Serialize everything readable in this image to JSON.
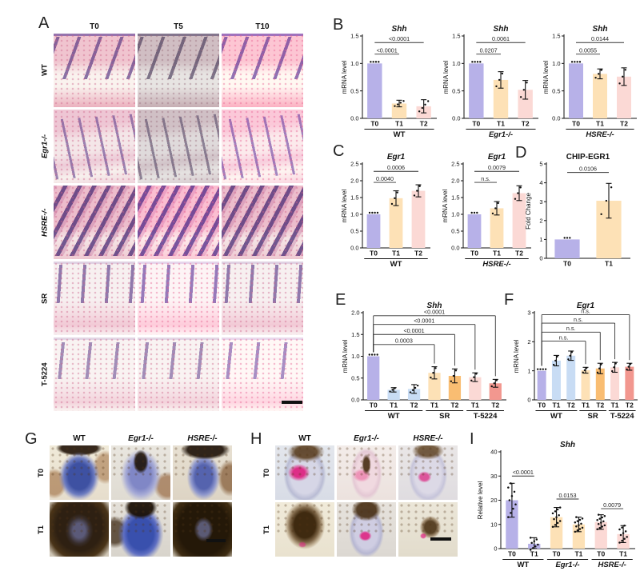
{
  "letters": {
    "A": "A",
    "B": "B",
    "C": "C",
    "D": "D",
    "E": "E",
    "F": "F",
    "G": "G",
    "H": "H",
    "I": "I"
  },
  "panels": {
    "A": {
      "col_headers": [
        "T0",
        "T5",
        "T10"
      ],
      "rows": [
        {
          "label": "WT",
          "italic": false,
          "tiles": [
            "he-wt",
            "he-wt tint-grey",
            "he-wt tint-warm"
          ]
        },
        {
          "label": "Egr1-/-",
          "italic": true,
          "tiles": [
            "he-eg",
            "he-eg tint-grey",
            "he-eg tint-warm"
          ]
        },
        {
          "label": "HSRE-/-",
          "italic": true,
          "tiles": [
            "he-hs",
            "he-hs tint-warm",
            "he-hs"
          ]
        },
        {
          "label": "SR",
          "italic": false,
          "tiles": [
            "he-sr",
            "he-sr tint-warm",
            "he-sr"
          ]
        },
        {
          "label": "T-5224",
          "italic": false,
          "tiles": [
            "he-t5",
            "he-t5",
            "he-t5 tint-warm"
          ]
        }
      ]
    },
    "G": {
      "col_headers": [
        {
          "label": "WT",
          "italic": false
        },
        {
          "label": "Egr1-/-",
          "italic": true
        },
        {
          "label": "HSRE-/-",
          "italic": true
        }
      ],
      "rows": [
        {
          "label": "T0",
          "italic": false,
          "tiles": [
            "g1",
            "g2",
            "g3"
          ]
        },
        {
          "label": "T1",
          "italic": false,
          "tiles": [
            "g4",
            "g5",
            "g6"
          ]
        }
      ]
    },
    "H": {
      "col_headers": [
        {
          "label": "WT",
          "italic": false
        },
        {
          "label": "Egr1-/-",
          "italic": true
        },
        {
          "label": "HSRE-/-",
          "italic": true
        }
      ],
      "rows": [
        {
          "label": "T0",
          "italic": false,
          "tiles": [
            "h1",
            "h2",
            "h3"
          ]
        },
        {
          "label": "T1",
          "italic": false,
          "tiles": [
            "h4",
            "h5",
            "h6"
          ]
        }
      ]
    }
  },
  "palette": {
    "purple": "#b7b1e8",
    "blue": "#c8dcf4",
    "orange_light": "#fde1b6",
    "orange": "#f9bd72",
    "pink_light": "#fbd9d5",
    "salmon": "#f2978f"
  },
  "chart_data": [
    {
      "id": "b1",
      "type": "bar",
      "title": "Shh",
      "title_italic": true,
      "ylabel": "mRNA level",
      "ylim": [
        0,
        1.5
      ],
      "yticks": [
        "0.0",
        "0.5",
        "1.0",
        "1.5"
      ],
      "categories": [
        "T0",
        "T1",
        "T2"
      ],
      "values": [
        1.0,
        0.27,
        0.22
      ],
      "errors": [
        0.02,
        0.06,
        0.12
      ],
      "colors": [
        "#b7b1e8",
        "#fde1b6",
        "#fbd9d5"
      ],
      "dots": [
        {
          "n": 4,
          "layout": "row"
        },
        {
          "n": 4,
          "layout": "spread"
        },
        {
          "n": 4,
          "layout": "spread"
        }
      ],
      "groups": [
        {
          "label": "WT",
          "italic": false,
          "span": [
            0,
            2
          ]
        }
      ],
      "sig": [
        {
          "from": 0,
          "to": 1,
          "label": "<0.0001",
          "y": 1.17
        },
        {
          "from": 0,
          "to": 2,
          "label": "<0.0001",
          "y": 1.38
        }
      ]
    },
    {
      "id": "b2",
      "type": "bar",
      "title": "Shh",
      "title_italic": true,
      "ylabel": "mRNA level",
      "ylim": [
        0,
        1.5
      ],
      "yticks": [
        "0.0",
        "0.5",
        "1.0",
        "1.5"
      ],
      "categories": [
        "T0",
        "T1",
        "T2"
      ],
      "values": [
        1.0,
        0.7,
        0.52
      ],
      "errors": [
        0.02,
        0.15,
        0.17
      ],
      "colors": [
        "#b7b1e8",
        "#fde1b6",
        "#fbd9d5"
      ],
      "dots": [
        {
          "n": 4,
          "layout": "row"
        },
        {
          "n": 3,
          "layout": "spread"
        },
        {
          "n": 3,
          "layout": "spread"
        }
      ],
      "groups": [
        {
          "label": "Egr1-/-",
          "italic": true,
          "span": [
            0,
            2
          ]
        }
      ],
      "sig": [
        {
          "from": 0,
          "to": 1,
          "label": "0.0207",
          "y": 1.17
        },
        {
          "from": 0,
          "to": 2,
          "label": "0.0061",
          "y": 1.38
        }
      ]
    },
    {
      "id": "b3",
      "type": "bar",
      "title": "Shh",
      "title_italic": true,
      "ylabel": "mRNA level",
      "ylim": [
        0,
        1.5
      ],
      "yticks": [
        "0.0",
        "0.5",
        "1.0",
        "1.5"
      ],
      "categories": [
        "T0",
        "T1",
        "T2"
      ],
      "values": [
        1.0,
        0.81,
        0.76
      ],
      "errors": [
        0.02,
        0.09,
        0.16
      ],
      "colors": [
        "#b7b1e8",
        "#fde1b6",
        "#fbd9d5"
      ],
      "dots": [
        {
          "n": 4,
          "layout": "row"
        },
        {
          "n": 3,
          "layout": "spread"
        },
        {
          "n": 3,
          "layout": "spread"
        }
      ],
      "groups": [
        {
          "label": "HSRE-/-",
          "italic": true,
          "span": [
            0,
            2
          ]
        }
      ],
      "sig": [
        {
          "from": 0,
          "to": 1,
          "label": "0.0055",
          "y": 1.17
        },
        {
          "from": 0,
          "to": 2,
          "label": "0.0144",
          "y": 1.38
        }
      ]
    },
    {
      "id": "c1",
      "type": "bar",
      "title": "Egr1",
      "title_italic": true,
      "ylabel": "mRNA level",
      "ylim": [
        0,
        2.5
      ],
      "yticks": [
        "0.0",
        "0.5",
        "1.0",
        "1.5",
        "2.0",
        "2.5"
      ],
      "categories": [
        "T0",
        "T1",
        "T2"
      ],
      "values": [
        1.0,
        1.48,
        1.7
      ],
      "errors": [
        0.02,
        0.22,
        0.18
      ],
      "colors": [
        "#b7b1e8",
        "#fde1b6",
        "#fbd9d5"
      ],
      "dots": [
        {
          "n": 4,
          "layout": "row"
        },
        {
          "n": 3,
          "layout": "spread"
        },
        {
          "n": 3,
          "layout": "spread"
        }
      ],
      "groups": [
        {
          "label": "WT",
          "italic": false,
          "span": [
            0,
            2
          ]
        }
      ],
      "sig": [
        {
          "from": 0,
          "to": 1,
          "label": "0.0040",
          "y": 1.95
        },
        {
          "from": 0,
          "to": 2,
          "label": "0.0006",
          "y": 2.28
        }
      ]
    },
    {
      "id": "c2",
      "type": "bar",
      "title": "Egr1",
      "title_italic": true,
      "ylabel": "mRNA level",
      "ylim": [
        0,
        2.5
      ],
      "yticks": [
        "0.0",
        "0.5",
        "1.0",
        "1.5",
        "2.0",
        "2.5"
      ],
      "categories": [
        "T0",
        "T1",
        "T2"
      ],
      "values": [
        1.0,
        1.18,
        1.63
      ],
      "errors": [
        0.03,
        0.2,
        0.22
      ],
      "colors": [
        "#b7b1e8",
        "#fde1b6",
        "#fbd9d5"
      ],
      "dots": [
        {
          "n": 3,
          "layout": "row"
        },
        {
          "n": 3,
          "layout": "spread"
        },
        {
          "n": 3,
          "layout": "spread"
        }
      ],
      "groups": [
        {
          "label": "HSRE-/-",
          "italic": true,
          "span": [
            0,
            2
          ]
        }
      ],
      "sig": [
        {
          "from": 0,
          "to": 1,
          "label": "n.s.",
          "y": 1.95
        },
        {
          "from": 0,
          "to": 2,
          "label": "0.0079",
          "y": 2.28
        }
      ]
    },
    {
      "id": "d",
      "type": "bar",
      "title": "CHIP-EGR1",
      "title_italic": false,
      "ylabel": "Fold Change",
      "ylim": [
        0,
        5
      ],
      "yticks": [
        "0",
        "1",
        "2",
        "3",
        "4",
        "5"
      ],
      "categories": [
        "T0",
        "T1"
      ],
      "values": [
        1.0,
        3.05
      ],
      "errors": [
        0.06,
        0.92
      ],
      "colors": [
        "#b7b1e8",
        "#fde1b6"
      ],
      "dots": [
        {
          "n": 3,
          "layout": "row"
        },
        {
          "n": 3,
          "layout": "spread"
        }
      ],
      "groups": [],
      "sig": [
        {
          "from": 0,
          "to": 1,
          "label": "0.0106",
          "y": 4.55
        }
      ]
    },
    {
      "id": "e",
      "type": "bar",
      "title": "Shh",
      "title_italic": true,
      "ylabel": "mRNA level",
      "ylim": [
        0,
        2.0
      ],
      "elbow": true,
      "yticks": [
        "0.0",
        "0.5",
        "1.0",
        "1.5",
        "2.0"
      ],
      "categories": [
        "T0",
        "T1",
        "T2",
        "T1",
        "T2",
        "T1",
        "T2"
      ],
      "values": [
        1.0,
        0.23,
        0.25,
        0.62,
        0.55,
        0.52,
        0.38
      ],
      "errors": [
        0.02,
        0.05,
        0.1,
        0.14,
        0.16,
        0.1,
        0.09
      ],
      "colors": [
        "#b7b1e8",
        "#c8dcf4",
        "#c8dcf4",
        "#fde1b6",
        "#f9bd72",
        "#fbd9d5",
        "#f2978f"
      ],
      "dots": [
        {
          "n": 4,
          "layout": "row"
        },
        {
          "n": 3,
          "layout": "spread"
        },
        {
          "n": 4,
          "layout": "spread"
        },
        {
          "n": 3,
          "layout": "spread"
        },
        {
          "n": 3,
          "layout": "spread"
        },
        {
          "n": 3,
          "layout": "spread"
        },
        {
          "n": 3,
          "layout": "spread"
        }
      ],
      "groups": [
        {
          "label": "WT",
          "italic": false,
          "span": [
            0,
            2
          ]
        },
        {
          "label": "SR",
          "italic": false,
          "span": [
            3,
            4
          ]
        },
        {
          "label": "T-5224",
          "italic": false,
          "span": [
            5,
            6
          ]
        }
      ],
      "sig": [
        {
          "from": 0,
          "to": 3,
          "label": "0.0003",
          "y": 1.27
        },
        {
          "from": 0,
          "to": 4,
          "label": "<0.0001",
          "y": 1.5
        },
        {
          "from": 0,
          "to": 5,
          "label": "<0.0001",
          "y": 1.73
        },
        {
          "from": 0,
          "to": 6,
          "label": "<0.0001",
          "y": 1.93
        }
      ]
    },
    {
      "id": "f",
      "type": "bar",
      "title": "Egr1",
      "title_italic": true,
      "ylabel": "mRNA level",
      "ylim": [
        0,
        3
      ],
      "elbow": true,
      "yticks": [
        "0",
        "1",
        "2",
        "3"
      ],
      "categories": [
        "T0",
        "T1",
        "T2",
        "T1",
        "T2",
        "T1",
        "T2"
      ],
      "values": [
        1.0,
        1.35,
        1.52,
        1.02,
        1.08,
        1.12,
        1.14
      ],
      "errors": [
        0.06,
        0.18,
        0.16,
        0.1,
        0.18,
        0.17,
        0.12
      ],
      "colors": [
        "#b7b1e8",
        "#c8dcf4",
        "#c8dcf4",
        "#fde1b6",
        "#f9bd72",
        "#fbd9d5",
        "#f2978f"
      ],
      "dots": [
        {
          "n": 4,
          "layout": "row"
        },
        {
          "n": 3,
          "layout": "spread"
        },
        {
          "n": 3,
          "layout": "spread"
        },
        {
          "n": 3,
          "layout": "spread"
        },
        {
          "n": 3,
          "layout": "spread"
        },
        {
          "n": 3,
          "layout": "spread"
        },
        {
          "n": 3,
          "layout": "spread"
        }
      ],
      "groups": [
        {
          "label": "WT",
          "italic": false,
          "span": [
            0,
            2
          ]
        },
        {
          "label": "SR",
          "italic": false,
          "span": [
            3,
            4
          ]
        },
        {
          "label": "T-5224",
          "italic": false,
          "span": [
            5,
            6
          ]
        }
      ],
      "sig": [
        {
          "from": 0,
          "to": 3,
          "label": "n.s.",
          "y": 2.02
        },
        {
          "from": 0,
          "to": 4,
          "label": "n.s.",
          "y": 2.33
        },
        {
          "from": 0,
          "to": 5,
          "label": "n.s.",
          "y": 2.64
        },
        {
          "from": 0,
          "to": 6,
          "label": "n.s.",
          "y": 2.93
        }
      ]
    },
    {
      "id": "i",
      "type": "bar",
      "title": "Shh",
      "title_italic": true,
      "ylabel": "Relative level",
      "ylim": [
        0,
        40
      ],
      "ml": 30,
      "yticks": [
        "0",
        "10",
        "20",
        "30",
        "40"
      ],
      "categories": [
        "T0",
        "T1",
        "T0",
        "T1",
        "T0",
        "T1"
      ],
      "values": [
        20,
        2,
        13,
        10,
        11,
        6
      ],
      "errors": [
        7,
        2.5,
        4,
        3,
        3,
        3.5
      ],
      "colors": [
        "#b7b1e8",
        "#b7b1e8",
        "#fde1b6",
        "#fde1b6",
        "#fbd9d5",
        "#fbd9d5"
      ],
      "dots": [
        {
          "n": 9,
          "layout": "spread"
        },
        {
          "n": 8,
          "layout": "spread"
        },
        {
          "n": 11,
          "layout": "spread"
        },
        {
          "n": 12,
          "layout": "spread"
        },
        {
          "n": 12,
          "layout": "spread"
        },
        {
          "n": 10,
          "layout": "spread"
        }
      ],
      "groups": [
        {
          "label": "WT",
          "italic": false,
          "span": [
            0,
            1
          ]
        },
        {
          "label": "Egr1-/-",
          "italic": true,
          "span": [
            2,
            3
          ]
        },
        {
          "label": "HSRE-/-",
          "italic": true,
          "span": [
            4,
            5
          ]
        }
      ],
      "sig": [
        {
          "from": 0,
          "to": 1,
          "label": "<0.0001",
          "y": 30
        },
        {
          "from": 2,
          "to": 3,
          "label": "0.0153",
          "y": 20.5
        },
        {
          "from": 4,
          "to": 5,
          "label": "0.0079",
          "y": 16.5
        }
      ]
    }
  ]
}
